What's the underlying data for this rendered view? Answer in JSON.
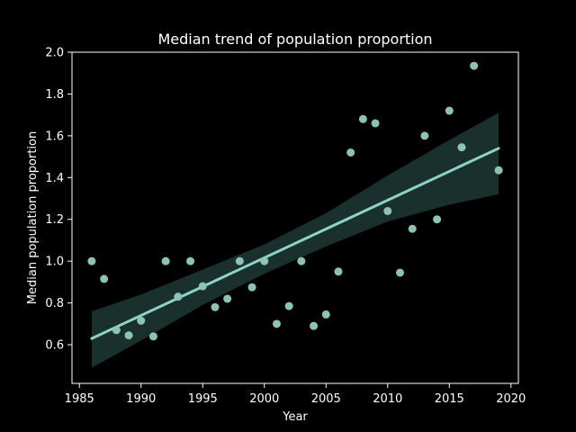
{
  "chart_data": {
    "type": "scatter",
    "title": "Median trend of population proportion",
    "xlabel": "Year",
    "ylabel": "Median population proportion",
    "xlim": [
      1984.4,
      2020.6
    ],
    "ylim": [
      0.415,
      2.0
    ],
    "xticks": [
      1985,
      1990,
      1995,
      2000,
      2005,
      2010,
      2015,
      2020
    ],
    "yticks": [
      0.6,
      0.8,
      1.0,
      1.2,
      1.4,
      1.6,
      1.8,
      2.0
    ],
    "xtick_labels": [
      "1985",
      "1990",
      "1995",
      "2000",
      "2005",
      "2010",
      "2015",
      "2020"
    ],
    "ytick_labels": [
      "0.6",
      "0.8",
      "1.0",
      "1.2",
      "1.4",
      "1.6",
      "1.8",
      "2.0"
    ],
    "grid": false,
    "colors": {
      "background": "#000000",
      "points": "#8dc3b5",
      "line": "#8dd3c7",
      "band": "#19302c",
      "axes": "#ffffff"
    },
    "points": [
      {
        "x": 1986,
        "y": 1.0
      },
      {
        "x": 1987,
        "y": 0.915
      },
      {
        "x": 1988,
        "y": 0.67
      },
      {
        "x": 1989,
        "y": 0.645
      },
      {
        "x": 1990,
        "y": 0.715
      },
      {
        "x": 1991,
        "y": 0.64
      },
      {
        "x": 1992,
        "y": 1.0
      },
      {
        "x": 1993,
        "y": 0.83
      },
      {
        "x": 1994,
        "y": 1.0
      },
      {
        "x": 1995,
        "y": 0.88
      },
      {
        "x": 1996,
        "y": 0.78
      },
      {
        "x": 1997,
        "y": 0.82
      },
      {
        "x": 1998,
        "y": 1.0
      },
      {
        "x": 1999,
        "y": 0.875
      },
      {
        "x": 2000,
        "y": 1.0
      },
      {
        "x": 2001,
        "y": 0.7
      },
      {
        "x": 2002,
        "y": 0.785
      },
      {
        "x": 2003,
        "y": 1.0
      },
      {
        "x": 2004,
        "y": 0.69
      },
      {
        "x": 2005,
        "y": 0.745
      },
      {
        "x": 2006,
        "y": 0.95
      },
      {
        "x": 2007,
        "y": 1.52
      },
      {
        "x": 2008,
        "y": 1.68
      },
      {
        "x": 2009,
        "y": 1.66
      },
      {
        "x": 2010,
        "y": 1.24
      },
      {
        "x": 2011,
        "y": 0.945
      },
      {
        "x": 2012,
        "y": 1.155
      },
      {
        "x": 2013,
        "y": 1.6
      },
      {
        "x": 2014,
        "y": 1.2
      },
      {
        "x": 2015,
        "y": 1.72
      },
      {
        "x": 2016,
        "y": 1.545
      },
      {
        "x": 2017,
        "y": 1.935
      },
      {
        "x": 2019,
        "y": 1.435
      }
    ],
    "trend_line": [
      {
        "x": 1986,
        "y": 0.63
      },
      {
        "x": 2019,
        "y": 1.54
      }
    ],
    "confidence_band": {
      "x": [
        1986,
        1990,
        1995,
        2000,
        2005,
        2010,
        2015,
        2019
      ],
      "lower": [
        0.49,
        0.62,
        0.79,
        0.94,
        1.07,
        1.19,
        1.27,
        1.32
      ],
      "upper": [
        0.76,
        0.84,
        0.96,
        1.08,
        1.23,
        1.41,
        1.58,
        1.71
      ]
    }
  }
}
